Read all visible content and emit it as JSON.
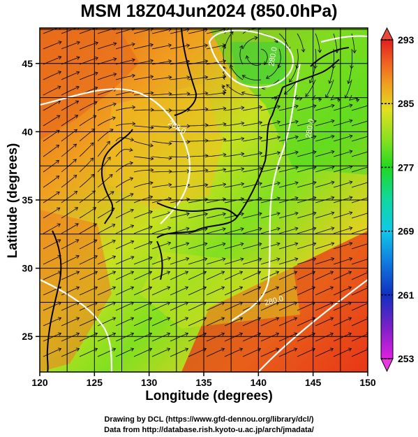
{
  "figure": {
    "title": "MSM 18Z04Jun2024 (850.0hPa)",
    "xlabel": "Longitude (degrees)",
    "ylabel": "Latitude  (degrees)",
    "footer": [
      "Drawing by DCL (https://www.gfd-dennou.org/library/dcl/)",
      "Data from http://database.rish.kyoto-u.ac.jp/arch/jmadata/"
    ]
  },
  "map": {
    "projection": "equirectangular",
    "lon_range": [
      120,
      150
    ],
    "lat_range": [
      22.4,
      47.6
    ],
    "x_ticks": [
      "120",
      "125",
      "130",
      "135",
      "140",
      "145",
      "150"
    ],
    "y_ticks": [
      "25",
      "30",
      "35",
      "40",
      "45"
    ],
    "grid": true,
    "field": "temperature",
    "overlay": "wind streamlines",
    "contour_labels": [
      "280.0",
      "282.0",
      "280.0",
      "280.0"
    ],
    "colorbar": {
      "min": 253,
      "max": 293,
      "ticks": [
        "293",
        "285",
        "277",
        "269",
        "261",
        "253"
      ],
      "colors": [
        "#e020e0",
        "#7a20c8",
        "#1030c0",
        "#1078e0",
        "#10c8e8",
        "#10d8a0",
        "#20d820",
        "#80e020",
        "#e0e020",
        "#f0a020",
        "#f06020",
        "#e02020"
      ]
    }
  }
}
